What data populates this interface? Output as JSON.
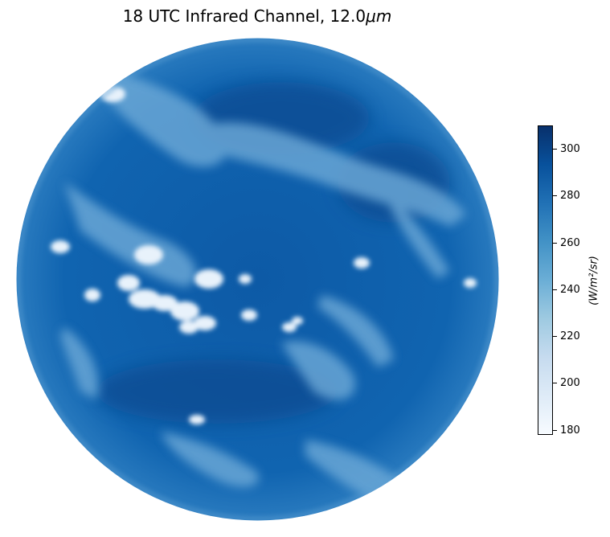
{
  "figure": {
    "title": "18 UTC Infrared Channel, 12.0",
    "title_unit": "μm"
  },
  "image": {
    "description_kind": "full-disk satellite infrared image",
    "colormap": [
      "#f7fbff",
      "#deebf7",
      "#c6dbef",
      "#9ecae1",
      "#6baed6",
      "#4292c6",
      "#2171b5",
      "#08519c",
      "#08306b"
    ]
  },
  "colorbar": {
    "label": "(W/m²/sr)",
    "range": [
      176,
      310
    ],
    "ticks": [
      "300",
      "280",
      "260",
      "240",
      "220",
      "200",
      "180"
    ]
  }
}
